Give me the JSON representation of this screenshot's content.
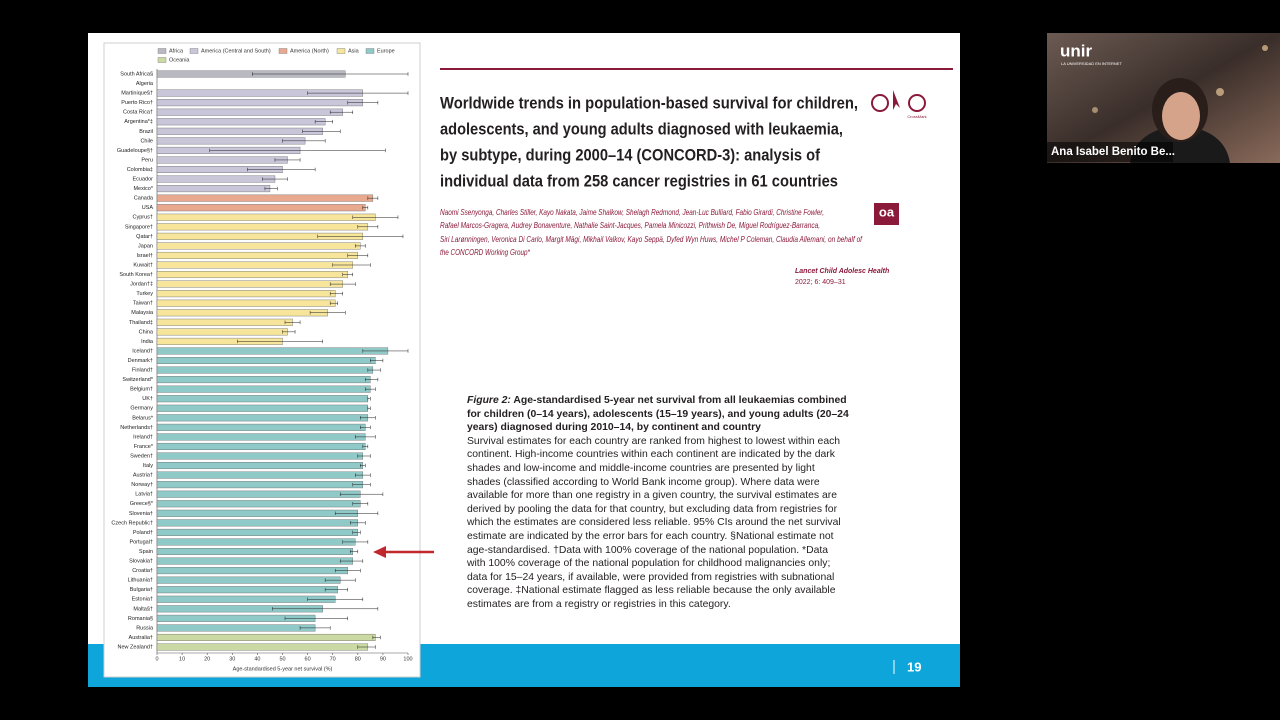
{
  "chart_data": {
    "type": "bar-errorbar",
    "orientation": "horizontal",
    "legend": "top",
    "xlabel": "Age-standardised 5-year net survival (%)",
    "xlim": [
      0,
      100
    ],
    "xticks": [
      0,
      10,
      20,
      30,
      40,
      50,
      60,
      70,
      80,
      90,
      100
    ],
    "series": [
      {
        "name": "Africa",
        "color": "#b9b9c1",
        "categories": [
          "South Africa§",
          "Algeria"
        ],
        "values": [
          75,
          null
        ],
        "lower": [
          38,
          null
        ],
        "upper": [
          100,
          null
        ]
      },
      {
        "name": "America (Central and South)",
        "color": "#c9c6da",
        "categories": [
          "Martinique§†",
          "Puerto Rico†",
          "Costa Rica†",
          "Argentina*‡",
          "Brazil",
          "Chile",
          "Guadeloupe§†",
          "Peru",
          "Colombia‡",
          "Ecuador",
          "Mexico*"
        ],
        "values": [
          82,
          82,
          74,
          67,
          66,
          59,
          57,
          52,
          50,
          47,
          45
        ],
        "lower": [
          60,
          76,
          69,
          63,
          58,
          50,
          21,
          47,
          36,
          42,
          43
        ],
        "upper": [
          100,
          88,
          78,
          70,
          73,
          67,
          91,
          57,
          63,
          52,
          48
        ]
      },
      {
        "name": "America (North)",
        "color": "#e9a98f",
        "categories": [
          "Canada",
          "USA"
        ],
        "values": [
          86,
          83
        ],
        "lower": [
          84,
          82
        ],
        "upper": [
          88,
          84
        ]
      },
      {
        "name": "Asia",
        "color": "#f6e59b",
        "categories": [
          "Cyprus†",
          "Singapore†",
          "Qatar†",
          "Japan",
          "Israel†",
          "Kuwait†",
          "South Korea†",
          "Jordan†‡",
          "Turkey",
          "Taiwan†",
          "Malaysia",
          "Thailand‡",
          "China",
          "India"
        ],
        "values": [
          87,
          84,
          82,
          81,
          80,
          78,
          76,
          74,
          71,
          71,
          68,
          54,
          52,
          50
        ],
        "lower": [
          78,
          80,
          64,
          79,
          76,
          70,
          74,
          69,
          69,
          69,
          61,
          51,
          50,
          32
        ],
        "upper": [
          96,
          88,
          98,
          83,
          84,
          85,
          78,
          79,
          74,
          72,
          75,
          57,
          55,
          66
        ]
      },
      {
        "name": "Europe",
        "color": "#8fcac8",
        "categories": [
          "Iceland†",
          "Denmark†",
          "Finland†",
          "Switzerland*",
          "Belgium†",
          "UK†",
          "Germany",
          "Belarus*",
          "Netherlands†",
          "Ireland†",
          "France*",
          "Sweden†",
          "Italy",
          "Austria†",
          "Norway†",
          "Latvia†",
          "Greece§*",
          "Slovenia†",
          "Czech Republic†",
          "Poland†",
          "Portugal†",
          "Spain",
          "Slovakia†",
          "Croatia†",
          "Lithuania†",
          "Bulgaria†",
          "Estonia†",
          "Malta§†",
          "Romania§",
          "Russia"
        ],
        "values": [
          92,
          87,
          86,
          85,
          85,
          84,
          84,
          84,
          83,
          83,
          83,
          82,
          82,
          82,
          82,
          81,
          81,
          80,
          80,
          80,
          79,
          78,
          78,
          76,
          73,
          72,
          71,
          66,
          63,
          63
        ],
        "lower": [
          82,
          85,
          84,
          83,
          83,
          84,
          84,
          81,
          81,
          79,
          82,
          80,
          81,
          79,
          78,
          73,
          78,
          71,
          77,
          78,
          74,
          77,
          73,
          71,
          67,
          67,
          60,
          46,
          51,
          57
        ],
        "upper": [
          100,
          90,
          89,
          88,
          87,
          85,
          85,
          87,
          85,
          87,
          84,
          85,
          83,
          85,
          85,
          90,
          84,
          88,
          83,
          81,
          84,
          80,
          82,
          81,
          79,
          76,
          82,
          88,
          76,
          69
        ]
      },
      {
        "name": "Oceania",
        "color": "#cbd9a2",
        "categories": [
          "Australia†",
          "New Zealand†"
        ],
        "values": [
          87,
          84
        ],
        "lower": [
          86,
          80
        ],
        "upper": [
          89,
          87
        ]
      }
    ]
  },
  "slide": {
    "title_lines": [
      "Worldwide trends in population-based survival for children,",
      "adolescents, and young adults diagnosed with leukaemia,",
      "by subtype, during 2000–14 (CONCORD-3): analysis of",
      "individual data from 258 cancer registries in 61 countries"
    ],
    "author_lines": [
      "Naomi Ssenyonga, Charles Stiller, Kayo Nakata, Jaime Shalkow, Shelagh Redmond, Jean-Luc Bulliard, Fabio Girardi, Christine Fowler,",
      "Rafael Marcos-Gragera, Audrey Bonaventure, Nathalie Saint-Jacques, Pamela Minicozzi, Prithwish De, Miguel Rodríguez-Barranca,",
      "Siri Larønningen, Veronica Di Carlo, Margit Mägi, Mikhail Valkov, Kayo Seppä, Dyfed Wyn Huws, Michel P Coleman, Claudia Allemani, on behalf of",
      "the CONCORD Working Group*"
    ],
    "journal": "Lancet Child Adolesc Health",
    "citation": "2022; 6: 409–31",
    "crossmark": "CrossMark",
    "oa": "oa",
    "caption": {
      "label": "Figure 2:",
      "heading": "Age-standardised 5-year net survival from all leukaemias combined for children (0–14 years), adolescents (15–19 years), and young adults (20–24 years) diagnosed during 2010–14, by continent and country",
      "body": "Survival estimates for each country are ranked from highest to lowest within each continent. High-income countries within each continent are indicated by the dark shades and low-income and middle-income countries are presented by light shades (classified according to World Bank income group). Where data were available for more than one registry in a given country, the survival estimates are derived by pooling the data for that country, but excluding data from registries for which the estimates are considered less reliable. 95% CIs around the net survival estimate are indicated by the error bars for each country. §National estimate not age-standardised. †Data with 100% coverage of the national population. *Data with 100% coverage of the national population for childhood malignancies only; data for 15–24 years, if available, were provided from registries with subnational coverage. ‡National estimate flagged as less reliable because the only available estimates are from a registry or registries in this category."
    },
    "page_number": "19"
  },
  "video": {
    "logo": "unir",
    "tagline": "LA UNIVERSIDAD EN INTERNET",
    "participant": "Ana Isabel Benito Be..."
  }
}
